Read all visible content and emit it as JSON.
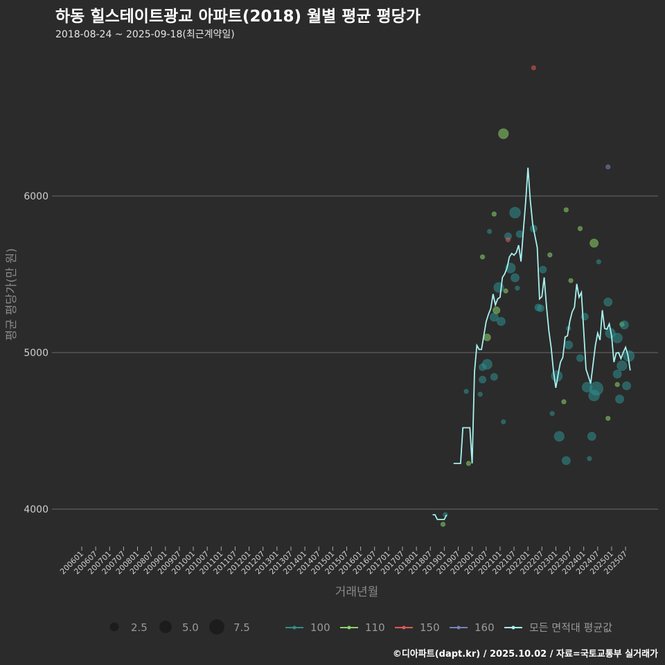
{
  "title": "하동 힐스테이트광교 아파트(2018) 월별 평균 평당가",
  "subtitle": "2018-08-24 ~ 2025-09-18(최근계약일)",
  "footer": "©디아파트(dapt.kr) / 2025.10.02 / 자료=국토교통부 실거래가",
  "colors": {
    "100": "#2f8f8f",
    "110": "#8bd46a",
    "150": "#e05858",
    "160": "#7585b5",
    "avg": "#a8f2f0",
    "grid": "#5e5e5e",
    "bg": "#2b2b2b"
  },
  "chart_data": {
    "type": "scatter+line",
    "xlabel": "거래년월",
    "ylabel": "평균 평당가(만 원)",
    "ylim": [
      3580,
      6880
    ],
    "yticks": [
      4000,
      5000,
      6000
    ],
    "xlim_months": [
      "2005-10",
      "2025-12"
    ],
    "xticks": [
      "200601",
      "200607",
      "200701",
      "200707",
      "200801",
      "200807",
      "200901",
      "200907",
      "201001",
      "201007",
      "201101",
      "201107",
      "201201",
      "201207",
      "201301",
      "201307",
      "201401",
      "201407",
      "201501",
      "201507",
      "201601",
      "201607",
      "201701",
      "201707",
      "201801",
      "201807",
      "201901",
      "201907",
      "202001",
      "202007",
      "202101",
      "202107",
      "202201",
      "202207",
      "202301",
      "202307",
      "202401",
      "202407",
      "202501",
      "202507"
    ],
    "legend_size": {
      "title": "",
      "values": [
        2.5,
        5.0,
        7.5
      ],
      "labels": [
        "2.5",
        "5.0",
        "7.5"
      ]
    },
    "legend_area": [
      {
        "key": "100",
        "label": "100"
      },
      {
        "key": "110",
        "label": "110"
      },
      {
        "key": "150",
        "label": "150"
      },
      {
        "key": "160",
        "label": "160"
      },
      {
        "key": "avg",
        "label": "모든 면적대 평균값"
      }
    ],
    "avg_segments": [
      {
        "start": "2018-08",
        "values": [
          3964,
          3964,
          3934,
          3934,
          3934,
          3934,
          3964
        ]
      },
      {
        "start": "2019-05",
        "values": [
          4292,
          4292,
          4292,
          4292,
          4520,
          4520,
          4520,
          4520,
          4292,
          4878,
          5046,
          5020,
          5020,
          5107,
          5198,
          5244,
          5282,
          5374,
          5305,
          5343,
          5354,
          5480,
          5503,
          5541,
          5610,
          5633,
          5622,
          5640,
          5686,
          5582,
          5777,
          5960,
          6181,
          5975,
          5823,
          5747,
          5671,
          5343,
          5358,
          5480,
          5290,
          5137,
          5031,
          4878,
          4775,
          4863,
          4939,
          4970,
          5099,
          5107,
          5198,
          5259,
          5290,
          5439,
          5354,
          5384,
          5137,
          4894,
          4848,
          4802,
          4924,
          5046,
          5125,
          5080,
          5271,
          5153,
          5150,
          5183,
          5107,
          4939,
          4997,
          5000,
          4962,
          5000,
          5034,
          4985,
          4886
        ]
      }
    ],
    "points": [
      [
        "2018-12",
        3903,
        1,
        "110"
      ],
      [
        "2019-01",
        3965,
        1,
        "100"
      ],
      [
        "2019-10",
        4752,
        1,
        "100"
      ],
      [
        "2019-11",
        4292,
        1,
        "110"
      ],
      [
        "2020-04",
        4734,
        1,
        "100"
      ],
      [
        "2020-05",
        5611,
        1,
        "110"
      ],
      [
        "2020-05",
        4827,
        2.5,
        "100"
      ],
      [
        "2020-05",
        4907,
        2.5,
        "100"
      ],
      [
        "2020-07",
        4925,
        5,
        "100"
      ],
      [
        "2020-07",
        5097,
        2.5,
        "110"
      ],
      [
        "2020-08",
        5774,
        1,
        "100"
      ],
      [
        "2020-10",
        5885,
        1,
        "110"
      ],
      [
        "2020-10",
        4845,
        2.5,
        "100"
      ],
      [
        "2020-10",
        5226,
        3.5,
        "100"
      ],
      [
        "2020-11",
        5270,
        2.5,
        "110"
      ],
      [
        "2020-12",
        5416,
        5,
        "100"
      ],
      [
        "2021-01",
        5199,
        3.5,
        "100"
      ],
      [
        "2021-02",
        6398,
        5,
        "110"
      ],
      [
        "2021-02",
        4558,
        1,
        "100"
      ],
      [
        "2021-03",
        5394,
        1,
        "110"
      ],
      [
        "2021-04",
        5743,
        2.5,
        "100"
      ],
      [
        "2021-04",
        5721,
        1,
        "150"
      ],
      [
        "2021-05",
        5540,
        5,
        "100"
      ],
      [
        "2021-07",
        5478,
        3.5,
        "100"
      ],
      [
        "2021-07",
        5894,
        6,
        "100"
      ],
      [
        "2021-08",
        5412,
        1,
        "100"
      ],
      [
        "2021-09",
        5757,
        2.5,
        "100"
      ],
      [
        "2022-03",
        6819,
        1,
        "150"
      ],
      [
        "2022-03",
        5792,
        2.5,
        "100"
      ],
      [
        "2022-05",
        5288,
        2.5,
        "100"
      ],
      [
        "2022-06",
        5283,
        2.5,
        "100"
      ],
      [
        "2022-07",
        5530,
        2.5,
        "100"
      ],
      [
        "2022-10",
        5624,
        1,
        "110"
      ],
      [
        "2022-11",
        4611,
        1,
        "100"
      ],
      [
        "2023-01",
        4850,
        6,
        "100"
      ],
      [
        "2023-02",
        4465,
        5,
        "100"
      ],
      [
        "2023-04",
        4686,
        1,
        "110"
      ],
      [
        "2023-05",
        4310,
        3.5,
        "100"
      ],
      [
        "2023-05",
        5912,
        1,
        "110"
      ],
      [
        "2023-06",
        5155,
        1,
        "100"
      ],
      [
        "2023-06",
        5049,
        3.5,
        "100"
      ],
      [
        "2023-07",
        5460,
        1,
        "110"
      ],
      [
        "2023-11",
        5792,
        1,
        "110"
      ],
      [
        "2023-11",
        4965,
        2.5,
        "100"
      ],
      [
        "2024-01",
        5230,
        2.5,
        "100"
      ],
      [
        "2024-02",
        4779,
        5,
        "100"
      ],
      [
        "2024-03",
        4323,
        1,
        "100"
      ],
      [
        "2024-04",
        4465,
        3.5,
        "100"
      ],
      [
        "2024-05",
        4726,
        6,
        "100"
      ],
      [
        "2024-05",
        5699,
        3.5,
        "110"
      ],
      [
        "2024-06",
        4770,
        9,
        "100"
      ],
      [
        "2024-07",
        5580,
        1,
        "100"
      ],
      [
        "2024-11",
        6186,
        1,
        "160"
      ],
      [
        "2024-11",
        4580,
        1,
        "110"
      ],
      [
        "2024-11",
        5323,
        3.5,
        "100"
      ],
      [
        "2024-12",
        5124,
        5,
        "100"
      ],
      [
        "2025-03",
        4863,
        3.5,
        "100"
      ],
      [
        "2025-03",
        5093,
        5,
        "100"
      ],
      [
        "2025-03",
        4796,
        1,
        "110"
      ],
      [
        "2025-04",
        4703,
        3.5,
        "100"
      ],
      [
        "2025-05",
        5181,
        1,
        "110"
      ],
      [
        "2025-05",
        4916,
        5,
        "100"
      ],
      [
        "2025-06",
        5177,
        3.5,
        "100"
      ],
      [
        "2025-07",
        4788,
        3.5,
        "100"
      ],
      [
        "2025-08",
        4978,
        6,
        "100"
      ]
    ]
  }
}
